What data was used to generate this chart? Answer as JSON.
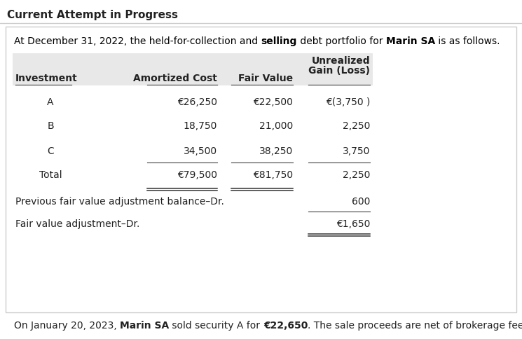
{
  "title": "Current Attempt in Progress",
  "intro_text_parts": [
    {
      "text": "At December 31, 2022, the held-for-collection and ",
      "bold": false,
      "color": "#000000"
    },
    {
      "text": "selling",
      "bold": true,
      "color": "#000000"
    },
    {
      "text": " debt portfolio for ",
      "bold": false,
      "color": "#000000"
    },
    {
      "text": "Marin SA",
      "bold": true,
      "color": "#000000"
    },
    {
      "text": " is as follows.",
      "bold": false,
      "color": "#000000"
    }
  ],
  "header_bg": "#e8e8e8",
  "col_headers": [
    "Investment",
    "Amortized Cost",
    "Fair Value",
    "Unrealized\nGain (Loss)"
  ],
  "rows": [
    [
      "A",
      "€26,250",
      "€22,500",
      "€(3,750 )"
    ],
    [
      "B",
      "18,750",
      "21,000",
      "2,250"
    ],
    [
      "C",
      "34,500",
      "38,250",
      "3,750"
    ],
    [
      "Total",
      "€79,500",
      "€81,750",
      "2,250"
    ]
  ],
  "extra_rows": [
    [
      "Previous fair value adjustment balance–Dr.",
      "",
      "",
      "600"
    ],
    [
      "Fair value adjustment–Dr.",
      "",
      "",
      "€1,650"
    ]
  ],
  "footer_parts": [
    {
      "text": "On January 20, 2023, ",
      "bold": false,
      "color": "#222222"
    },
    {
      "text": "Marin SA",
      "bold": true,
      "color": "#222222"
    },
    {
      "text": " sold security A for ",
      "bold": false,
      "color": "#222222"
    },
    {
      "text": "€22,650",
      "bold": true,
      "color": "#222222"
    },
    {
      "text": ". The sale proceeds are net of brokerage fees.",
      "bold": false,
      "color": "#222222"
    }
  ],
  "bg_color": "#ffffff",
  "border_color": "#cccccc",
  "text_color": "#222222",
  "title_fontsize": 11,
  "body_fontsize": 10
}
